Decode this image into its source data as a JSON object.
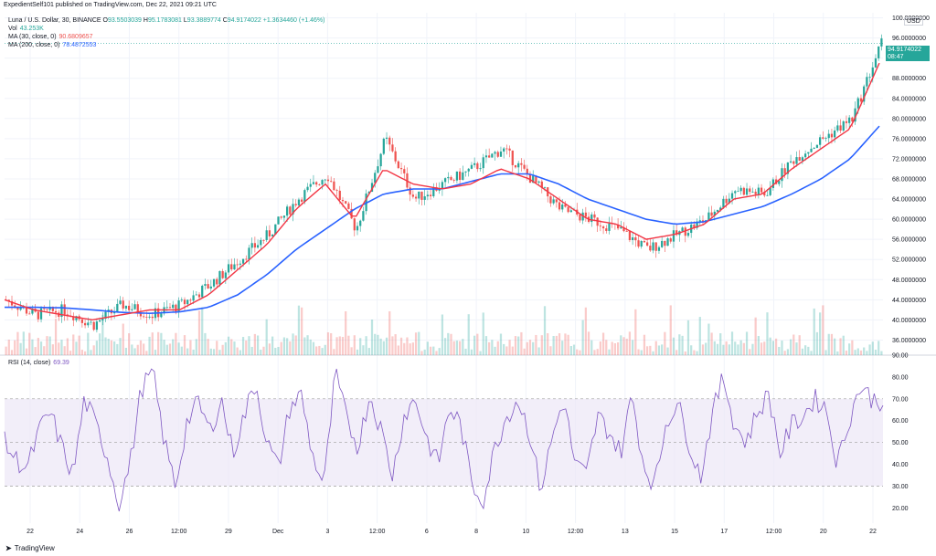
{
  "header": {
    "published": "ExpedientSelf101 published on TradingView.com, Dec 22, 2021 09:21 UTC"
  },
  "legend": {
    "pair": "Luna / U.S. Dollar, 30, BINANCE",
    "ohlc": [
      {
        "k": "O",
        "v": "93.5503039"
      },
      {
        "k": "H",
        "v": "95.1783081"
      },
      {
        "k": "L",
        "v": "93.3889774"
      },
      {
        "k": "C",
        "v": "94.9174022"
      }
    ],
    "change": "+1.3634460 (+1.46%)",
    "vol_label": "Vol",
    "vol_value": "43.253K",
    "ma30_label": "MA (30, close, 0)",
    "ma30_value": "90.6809657",
    "ma200_label": "MA (200, close, 0)",
    "ma200_value": "78.4872553"
  },
  "price_tag": {
    "price": "94.9174022",
    "countdown": "08:47"
  },
  "currency": "USD",
  "rsi_legend": {
    "label": "RSI (14, close)",
    "value": "69.39"
  },
  "brand": {
    "name": "TradingView"
  },
  "colors": {
    "up": "#26a69a",
    "down": "#ef5350",
    "ma30": "#f23645",
    "ma200": "#2962ff",
    "rsi": "#7e57c2",
    "rsi_band": "#ede7f6",
    "grid": "#f0f3fa"
  },
  "chart_data": [
    {
      "type": "candlestick",
      "title": "Luna / U.S. Dollar, 30, BINANCE",
      "x_ticks": [
        "22",
        "24",
        "26",
        "12:00",
        "29",
        "Dec",
        "3",
        "12:00",
        "6",
        "8",
        "10",
        "12:00",
        "13",
        "15",
        "17",
        "12:00",
        "20",
        "22"
      ],
      "y_ticks": [
        "100.0000000",
        "96.0000000",
        "92.0000000",
        "88.0000000",
        "84.0000000",
        "80.0000000",
        "76.0000000",
        "72.0000000",
        "68.0000000",
        "64.0000000",
        "60.0000000",
        "56.0000000",
        "52.0000000",
        "48.0000000",
        "44.0000000",
        "40.0000000",
        "36.0000000"
      ],
      "ylim": [
        33,
        101
      ],
      "close_path": {
        "x": [
          "Nov 22",
          "Nov 23",
          "Nov 24",
          "Nov 25",
          "Nov 26",
          "Nov 27",
          "Nov 28",
          "Nov 29",
          "Nov 30",
          "Dec 1",
          "Dec 2",
          "Dec 3",
          "Dec 4",
          "Dec 5",
          "Dec 6",
          "Dec 7",
          "Dec 8",
          "Dec 9",
          "Dec 10",
          "Dec 11",
          "Dec 12",
          "Dec 13",
          "Dec 14",
          "Dec 15",
          "Dec 16",
          "Dec 17",
          "Dec 18",
          "Dec 19",
          "Dec 20",
          "Dec 21",
          "Dec 22"
        ],
        "values": [
          44,
          41,
          42,
          39,
          43,
          41,
          43,
          47,
          52,
          57,
          64,
          69,
          58,
          76,
          64,
          67,
          70,
          74,
          68,
          62,
          60,
          58,
          54,
          57,
          60,
          66,
          65,
          72,
          76,
          80,
          95
        ]
      },
      "ma30": [
        44,
        42,
        41,
        40,
        41,
        42,
        42,
        45,
        50,
        55,
        62,
        67,
        60,
        70,
        67,
        66,
        67,
        70,
        68,
        64,
        60,
        59,
        56,
        57,
        59,
        64,
        65,
        70,
        74,
        78,
        91
      ],
      "ma200": [
        42.5,
        42.5,
        42.4,
        42,
        41.5,
        41.3,
        41.6,
        42.5,
        45,
        49,
        54,
        58,
        62,
        65,
        66,
        66,
        67.5,
        69,
        69,
        67,
        64,
        62,
        60,
        59,
        59.5,
        61,
        62.5,
        65,
        68,
        72,
        78.5
      ],
      "volume_label": "Vol"
    },
    {
      "type": "line",
      "title": "RSI (14, close)",
      "y_ticks": [
        "90.00",
        "80.00",
        "70.00",
        "60.00",
        "50.00",
        "40.00",
        "30.00",
        "20.00"
      ],
      "ylim": [
        13,
        90
      ],
      "bands": [
        30,
        50,
        70
      ],
      "values": [
        50,
        42,
        38,
        55,
        64,
        48,
        35,
        70,
        58,
        44,
        22,
        40,
        75,
        82,
        50,
        30,
        60,
        68,
        55,
        70,
        45,
        62,
        78,
        50,
        38,
        66,
        72,
        44,
        30,
        82,
        60,
        48,
        72,
        56,
        35,
        62,
        70,
        52,
        40,
        66,
        58,
        30,
        24,
        48,
        62,
        70,
        55,
        28,
        52,
        70,
        40,
        35,
        62,
        55,
        45,
        72,
        40,
        30,
        60,
        68,
        50,
        34,
        62,
        80,
        58,
        50,
        64,
        72,
        45,
        58,
        62,
        70,
        66,
        40,
        60,
        76,
        70,
        69
      ]
    }
  ]
}
